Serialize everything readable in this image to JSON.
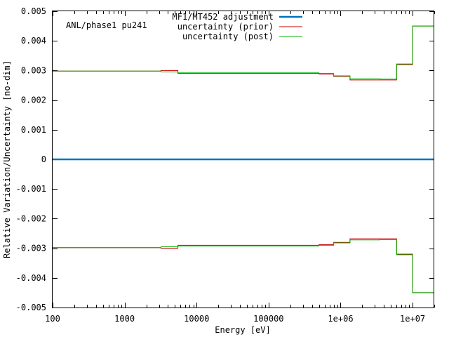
{
  "chart_data": {
    "type": "line",
    "annotation": "ANL/phase1 pu241",
    "xlabel": "Energy [eV]",
    "ylabel": "Relative Variation/Uncertainty [no-dim]",
    "xscale": "log",
    "xlim": [
      100,
      20000000
    ],
    "ylim": [
      -0.005,
      0.005
    ],
    "x_ticks": [
      {
        "value": 100,
        "label": "100"
      },
      {
        "value": 1000,
        "label": "1000"
      },
      {
        "value": 10000,
        "label": "10000"
      },
      {
        "value": 100000,
        "label": "100000"
      },
      {
        "value": 1000000,
        "label": "1e+06"
      },
      {
        "value": 10000000,
        "label": "1e+07"
      }
    ],
    "y_ticks": [
      {
        "value": 0.005,
        "label": "0.005"
      },
      {
        "value": 0.004,
        "label": "0.004"
      },
      {
        "value": 0.003,
        "label": "0.003"
      },
      {
        "value": 0.002,
        "label": "0.002"
      },
      {
        "value": 0.001,
        "label": "0.001"
      },
      {
        "value": 0,
        "label": "0"
      },
      {
        "value": -0.001,
        "label": "-0.001"
      },
      {
        "value": -0.002,
        "label": "-0.002"
      },
      {
        "value": -0.003,
        "label": "-0.003"
      },
      {
        "value": -0.004,
        "label": "-0.004"
      },
      {
        "value": -0.005,
        "label": "-0.005"
      }
    ],
    "legend_position": "top-right",
    "series": [
      {
        "name": "MF1/MT452 adjustment",
        "color": "#0072bd",
        "style": "thick",
        "x": [
          100,
          20000000
        ],
        "y": [
          0,
          0
        ]
      },
      {
        "name": "uncertainty (prior)",
        "color": "#cc0000",
        "style": "step",
        "mirrored": true,
        "edges": [
          100,
          3200,
          5500,
          500000,
          800000,
          1350000,
          3500000,
          6000000,
          10000000,
          20000000
        ],
        "values": [
          0.00298,
          0.003,
          0.0029,
          0.00288,
          0.0028,
          0.00268,
          0.00268,
          0.0032,
          0.0045
        ]
      },
      {
        "name": "uncertainty (post)",
        "color": "#00b000",
        "style": "step",
        "mirrored": true,
        "edges": [
          100,
          3200,
          5500,
          500000,
          800000,
          1350000,
          3500000,
          6000000,
          10000000,
          20000000
        ],
        "values": [
          0.00298,
          0.00295,
          0.00292,
          0.0029,
          0.00282,
          0.00272,
          0.00271,
          0.00322,
          0.0045
        ]
      }
    ]
  }
}
